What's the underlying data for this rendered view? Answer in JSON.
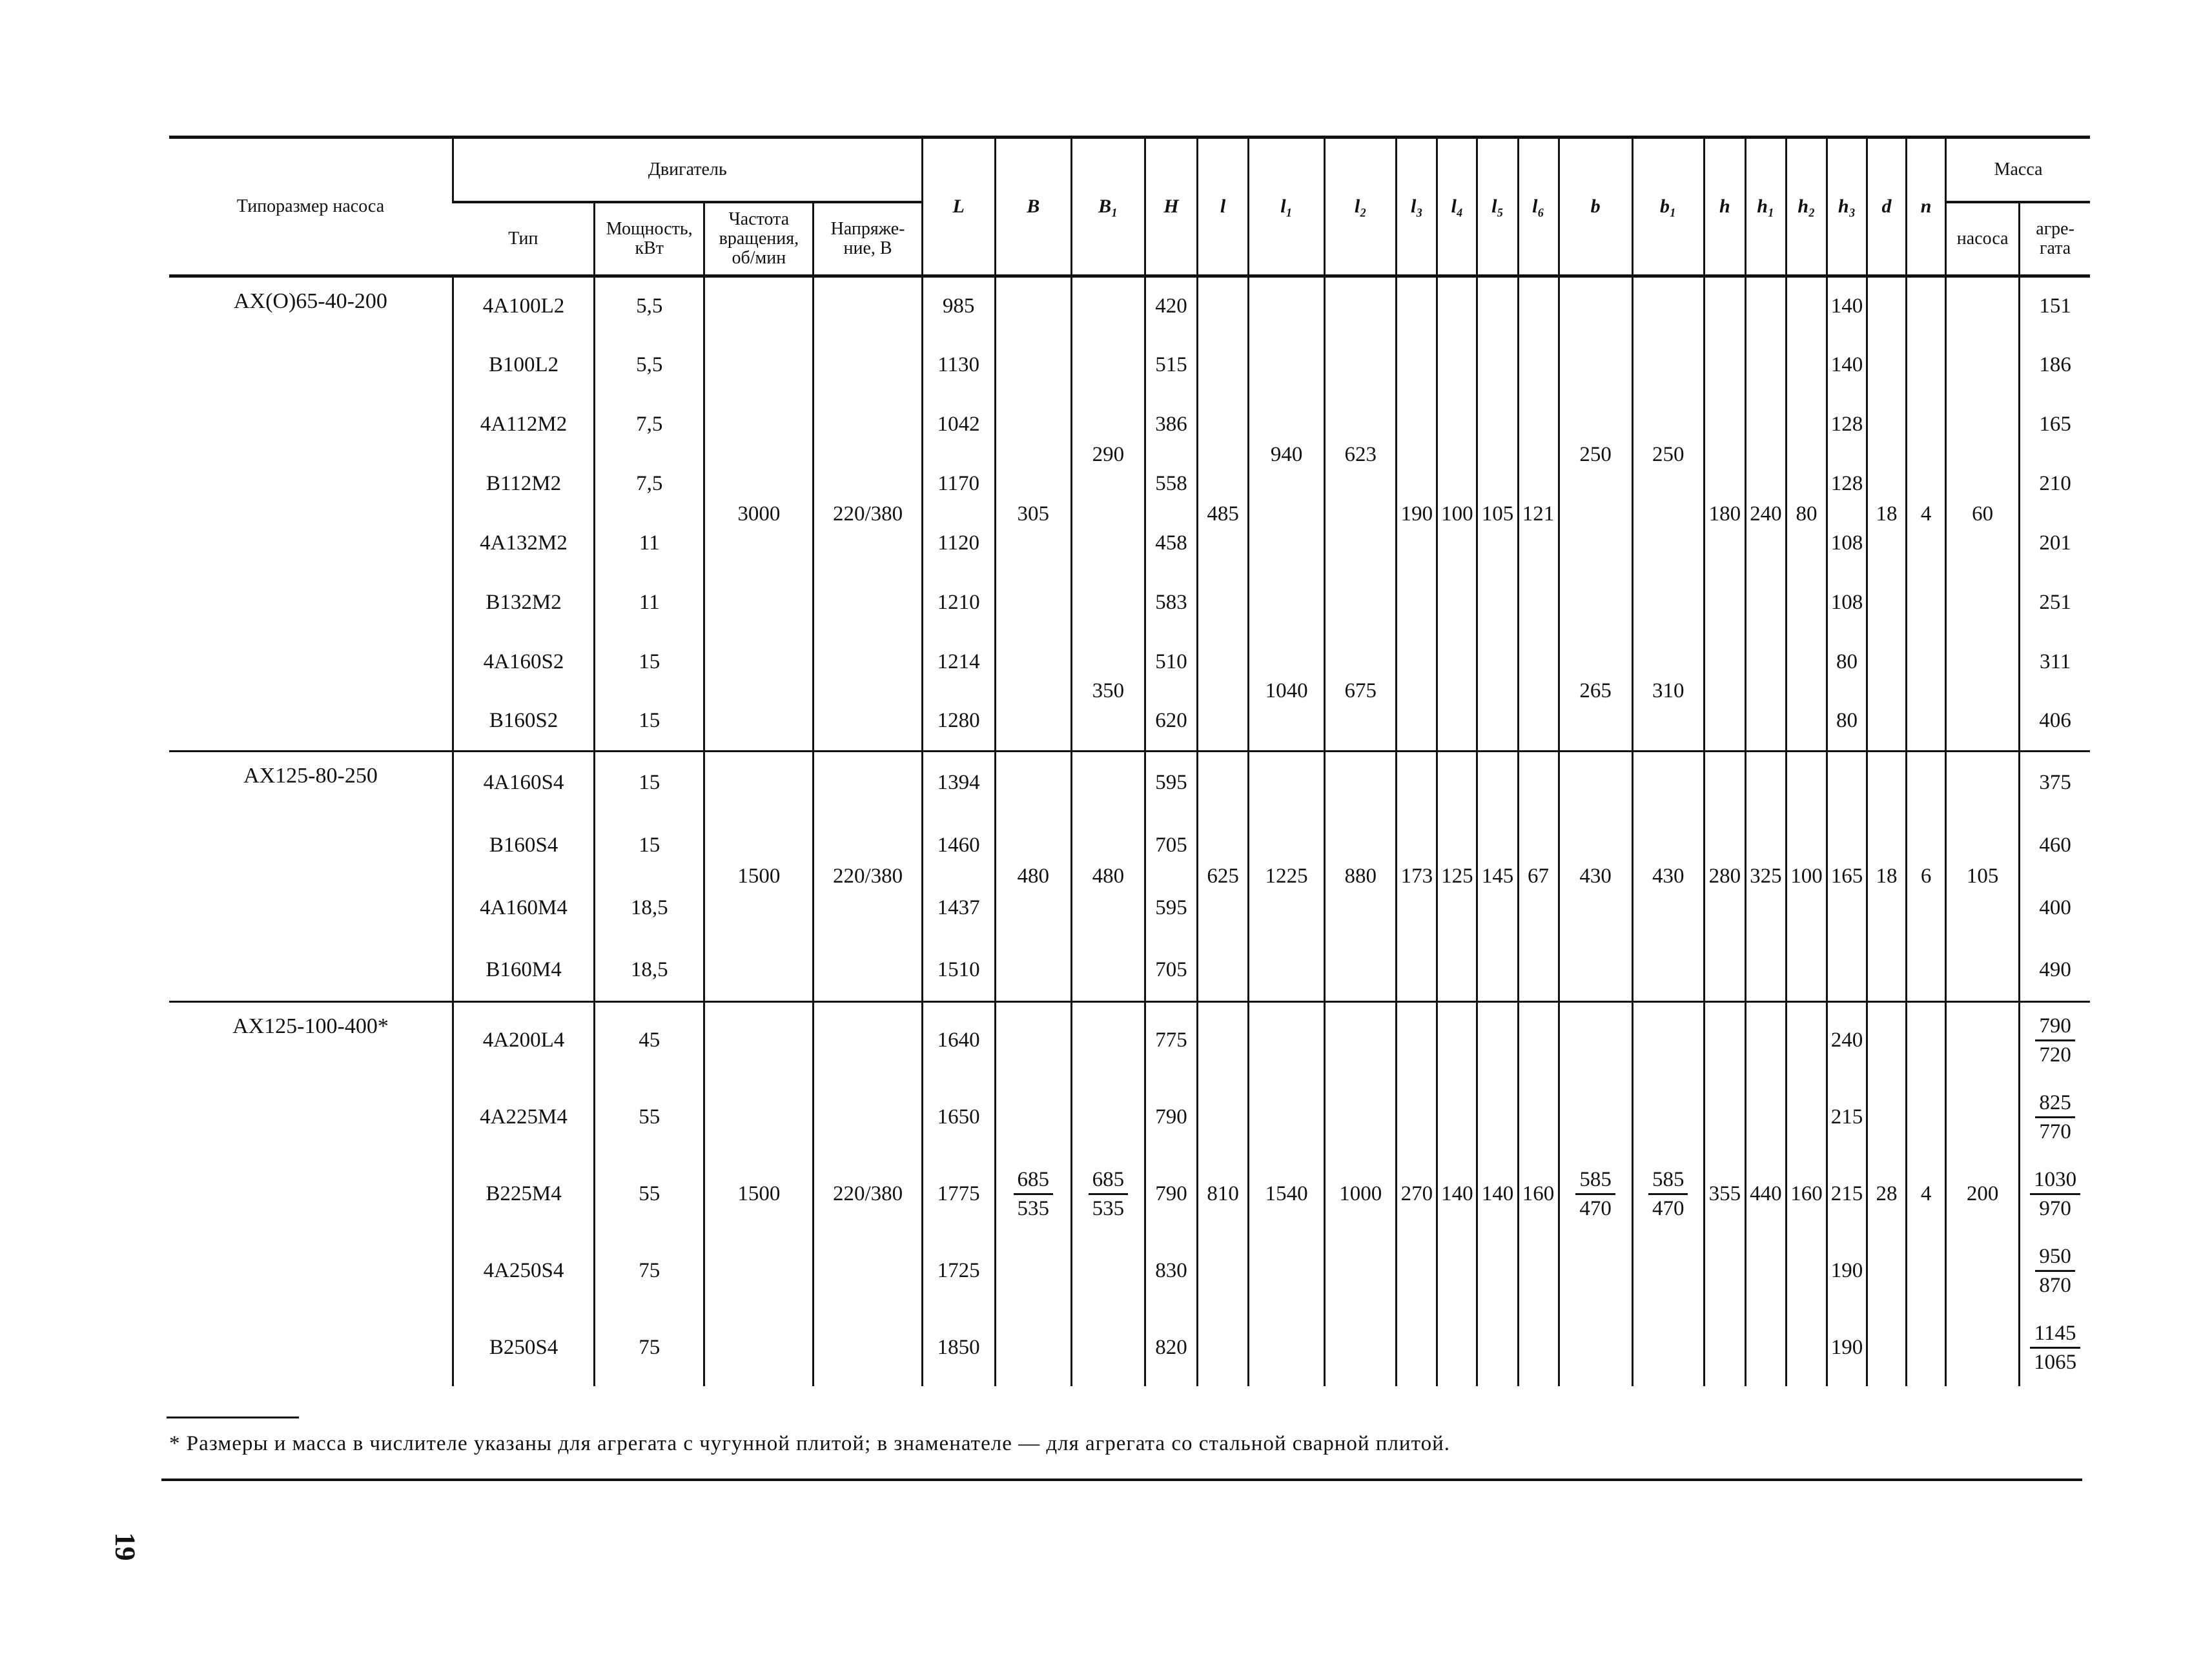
{
  "header": {
    "pump_size": "Типоразмер насоса",
    "motor": "Двигатель",
    "motor_type": "Тип",
    "power": "Мощность, кВт",
    "frequency": "Частота вращения, об/мин",
    "voltage": "Напряже- ние, В",
    "dims": [
      "L",
      "B",
      "B₁",
      "H",
      "l",
      "l₁",
      "l₂",
      "l₃",
      "l₄",
      "l₅",
      "l₆",
      "b",
      "b₁",
      "h",
      "h₁",
      "h₂",
      "h₃",
      "d",
      "n"
    ],
    "mass": "Масса",
    "mass_pump": "насоса",
    "mass_unit": "агре- гата"
  },
  "groups": [
    {
      "pump": "АХ(О)65-40-200",
      "cols": {
        "type": [
          {
            "v": "4А100L2"
          },
          {
            "v": "В100L2"
          },
          {
            "v": "4А112М2"
          },
          {
            "v": "В112М2"
          },
          {
            "v": "4А132М2"
          },
          {
            "v": "В132М2"
          },
          {
            "v": "4А160S2"
          },
          {
            "v": "В160S2"
          }
        ],
        "power": [
          {
            "v": "5,5"
          },
          {
            "v": "5,5"
          },
          {
            "v": "7,5"
          },
          {
            "v": "7,5"
          },
          {
            "v": "11"
          },
          {
            "v": "11"
          },
          {
            "v": "15"
          },
          {
            "v": "15"
          }
        ],
        "freq": [
          {
            "v": "3000",
            "span": 8
          }
        ],
        "voltage": [
          {
            "v": "220/380",
            "span": 8
          }
        ],
        "L": [
          {
            "v": "985"
          },
          {
            "v": "1130"
          },
          {
            "v": "1042"
          },
          {
            "v": "1170"
          },
          {
            "v": "1120"
          },
          {
            "v": "1210"
          },
          {
            "v": "1214"
          },
          {
            "v": "1280"
          }
        ],
        "B": [
          {
            "v": "305",
            "span": 8
          }
        ],
        "B1": [
          {
            "v": "290",
            "span": 6
          },
          {
            "v": "350",
            "span": 2
          }
        ],
        "H": [
          {
            "v": "420"
          },
          {
            "v": "515"
          },
          {
            "v": "386"
          },
          {
            "v": "558"
          },
          {
            "v": "458"
          },
          {
            "v": "583"
          },
          {
            "v": "510"
          },
          {
            "v": "620"
          }
        ],
        "l": [
          {
            "v": "485",
            "span": 8
          }
        ],
        "l1": [
          {
            "v": "940",
            "span": 6
          },
          {
            "v": "1040",
            "span": 2
          }
        ],
        "l2": [
          {
            "v": "623",
            "span": 6
          },
          {
            "v": "675",
            "span": 2
          }
        ],
        "l3": [
          {
            "v": "190",
            "span": 8
          }
        ],
        "l4": [
          {
            "v": "100",
            "span": 8
          }
        ],
        "l5": [
          {
            "v": "105",
            "span": 8
          }
        ],
        "l6": [
          {
            "v": "121",
            "span": 8
          }
        ],
        "b": [
          {
            "v": "250",
            "span": 6
          },
          {
            "v": "265",
            "span": 2
          }
        ],
        "b1": [
          {
            "v": "250",
            "span": 6
          },
          {
            "v": "310",
            "span": 2
          }
        ],
        "h": [
          {
            "v": "180",
            "span": 8
          }
        ],
        "h1": [
          {
            "v": "240",
            "span": 8
          }
        ],
        "h2": [
          {
            "v": "80",
            "span": 8
          }
        ],
        "h3": [
          {
            "v": "140"
          },
          {
            "v": "140"
          },
          {
            "v": "128"
          },
          {
            "v": "128"
          },
          {
            "v": "108"
          },
          {
            "v": "108"
          },
          {
            "v": "80"
          },
          {
            "v": "80"
          }
        ],
        "d": [
          {
            "v": "18",
            "span": 8
          }
        ],
        "n": [
          {
            "v": "4",
            "span": 8
          }
        ],
        "mass_pump": [
          {
            "v": "60",
            "span": 8
          }
        ],
        "mass_unit": [
          {
            "v": "151"
          },
          {
            "v": "186"
          },
          {
            "v": "165"
          },
          {
            "v": "210"
          },
          {
            "v": "201"
          },
          {
            "v": "251"
          },
          {
            "v": "311"
          },
          {
            "v": "406"
          }
        ]
      }
    },
    {
      "pump": "АХ125-80-250",
      "cols": {
        "type": [
          {
            "v": "4А160S4"
          },
          {
            "v": "В160S4"
          },
          {
            "v": "4А160М4"
          },
          {
            "v": "В160М4"
          }
        ],
        "power": [
          {
            "v": "15"
          },
          {
            "v": "15"
          },
          {
            "v": "18,5"
          },
          {
            "v": "18,5"
          }
        ],
        "freq": [
          {
            "v": "1500",
            "span": 4
          }
        ],
        "voltage": [
          {
            "v": "220/380",
            "span": 4
          }
        ],
        "L": [
          {
            "v": "1394"
          },
          {
            "v": "1460"
          },
          {
            "v": "1437"
          },
          {
            "v": "1510"
          }
        ],
        "B": [
          {
            "v": "480",
            "span": 4
          }
        ],
        "B1": [
          {
            "v": "480",
            "span": 4
          }
        ],
        "H": [
          {
            "v": "595"
          },
          {
            "v": "705"
          },
          {
            "v": "595"
          },
          {
            "v": "705"
          }
        ],
        "l": [
          {
            "v": "625",
            "span": 4
          }
        ],
        "l1": [
          {
            "v": "1225",
            "span": 4
          }
        ],
        "l2": [
          {
            "v": "880",
            "span": 4
          }
        ],
        "l3": [
          {
            "v": "173",
            "span": 4
          }
        ],
        "l4": [
          {
            "v": "125",
            "span": 4
          }
        ],
        "l5": [
          {
            "v": "145",
            "span": 4
          }
        ],
        "l6": [
          {
            "v": "67",
            "span": 4
          }
        ],
        "b": [
          {
            "v": "430",
            "span": 4
          }
        ],
        "b1": [
          {
            "v": "430",
            "span": 4
          }
        ],
        "h": [
          {
            "v": "280",
            "span": 4
          }
        ],
        "h1": [
          {
            "v": "325",
            "span": 4
          }
        ],
        "h2": [
          {
            "v": "100",
            "span": 4
          }
        ],
        "h3": [
          {
            "v": "165",
            "span": 4
          }
        ],
        "d": [
          {
            "v": "18",
            "span": 4
          }
        ],
        "n": [
          {
            "v": "6",
            "span": 4
          }
        ],
        "mass_pump": [
          {
            "v": "105",
            "span": 4
          }
        ],
        "mass_unit": [
          {
            "v": "375"
          },
          {
            "v": "460"
          },
          {
            "v": "400"
          },
          {
            "v": "490"
          }
        ]
      }
    },
    {
      "pump": "АХ125-100-400*",
      "cols": {
        "type": [
          {
            "v": "4А200L4"
          },
          {
            "v": "4А225М4"
          },
          {
            "v": "В225М4"
          },
          {
            "v": "4А250S4"
          },
          {
            "v": "В250S4"
          }
        ],
        "power": [
          {
            "v": "45"
          },
          {
            "v": "55"
          },
          {
            "v": "55"
          },
          {
            "v": "75"
          },
          {
            "v": "75"
          }
        ],
        "freq": [
          {
            "v": "1500",
            "span": 5
          }
        ],
        "voltage": [
          {
            "v": "220/380",
            "span": 5
          }
        ],
        "L": [
          {
            "v": "1640"
          },
          {
            "v": "1650"
          },
          {
            "v": "1775"
          },
          {
            "v": "1725"
          },
          {
            "v": "1850"
          }
        ],
        "B": [
          {
            "num": "685",
            "den": "535",
            "span": 5
          }
        ],
        "B1": [
          {
            "num": "685",
            "den": "535",
            "span": 5
          }
        ],
        "H": [
          {
            "v": "775"
          },
          {
            "v": "790"
          },
          {
            "v": "790"
          },
          {
            "v": "830"
          },
          {
            "v": "820"
          }
        ],
        "l": [
          {
            "v": "810",
            "span": 5
          }
        ],
        "l1": [
          {
            "v": "1540",
            "span": 5
          }
        ],
        "l2": [
          {
            "v": "1000",
            "span": 5
          }
        ],
        "l3": [
          {
            "v": "270",
            "span": 5
          }
        ],
        "l4": [
          {
            "v": "140",
            "span": 5
          }
        ],
        "l5": [
          {
            "v": "140",
            "span": 5
          }
        ],
        "l6": [
          {
            "v": "160",
            "span": 5
          }
        ],
        "b": [
          {
            "num": "585",
            "den": "470",
            "span": 5
          }
        ],
        "b1": [
          {
            "num": "585",
            "den": "470",
            "span": 5
          }
        ],
        "h": [
          {
            "v": "355",
            "span": 5
          }
        ],
        "h1": [
          {
            "v": "440",
            "span": 5
          }
        ],
        "h2": [
          {
            "v": "160",
            "span": 5
          }
        ],
        "h3": [
          {
            "v": "240"
          },
          {
            "v": "215"
          },
          {
            "v": "215"
          },
          {
            "v": "190"
          },
          {
            "v": "190"
          }
        ],
        "d": [
          {
            "v": "28",
            "span": 5
          }
        ],
        "n": [
          {
            "v": "4",
            "span": 5
          }
        ],
        "mass_pump": [
          {
            "v": "200",
            "span": 5
          }
        ],
        "mass_unit": [
          {
            "num": "790",
            "den": "720"
          },
          {
            "num": "825",
            "den": "770"
          },
          {
            "num": "1030",
            "den": "970"
          },
          {
            "num": "950",
            "den": "870"
          },
          {
            "num": "1145",
            "den": "1065"
          }
        ]
      }
    }
  ],
  "footnote": "* Размеры и масса в числителе указаны для агрегата с чугунной плитой; в знаменателе — для агрегата со стальной сварной плитой.",
  "page_number": "19"
}
